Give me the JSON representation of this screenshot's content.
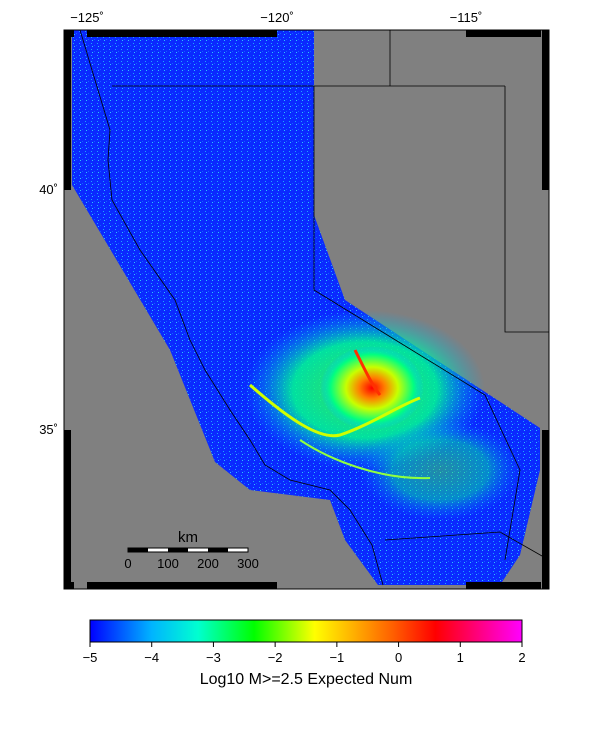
{
  "map": {
    "lon_labels": [
      "−125˚",
      "−120˚",
      "−115˚"
    ],
    "lat_labels": [
      "40˚",
      "35˚"
    ],
    "land_color": "#808080",
    "ocean_color": "#808080",
    "frame_color": "#000000"
  },
  "scale_bar": {
    "unit": "km",
    "ticks": [
      "0",
      "100",
      "200",
      "300"
    ]
  },
  "colorbar": {
    "ticks": [
      "−5",
      "−4",
      "−3",
      "−2",
      "−1",
      "0",
      "1",
      "2"
    ],
    "title": "Log10 M>=2.5 Expected Num",
    "colors": [
      "#0000ff",
      "#00ffff",
      "#00ff00",
      "#ffff00",
      "#ff0000",
      "#ff00ff"
    ]
  }
}
